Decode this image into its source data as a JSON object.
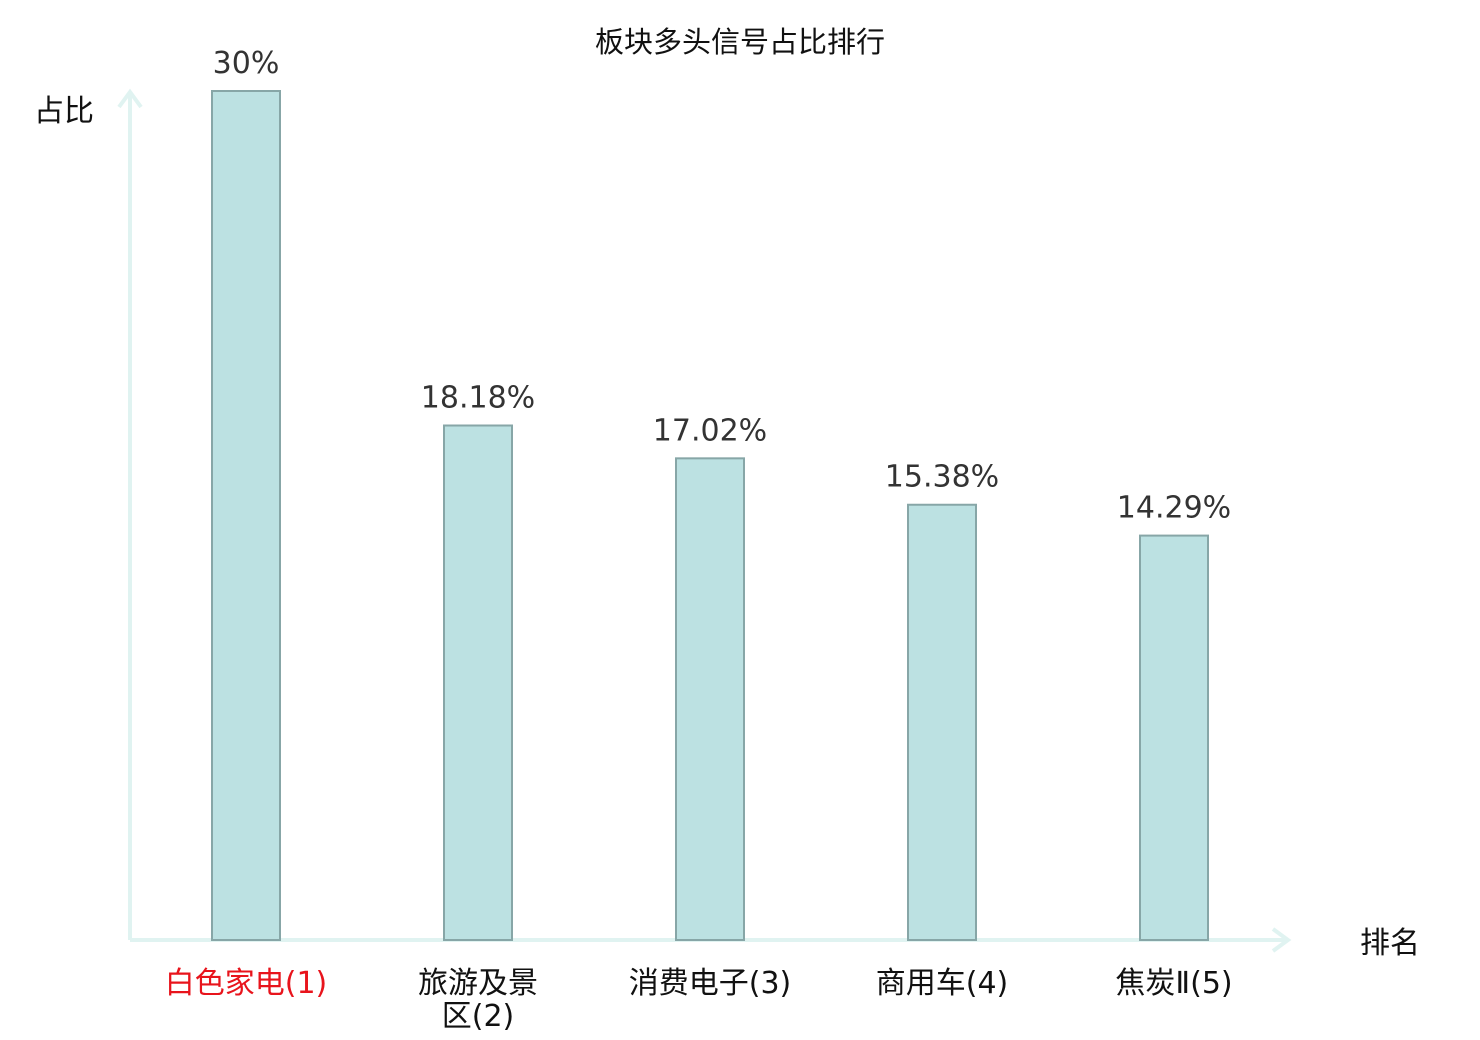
{
  "chart_data": {
    "type": "bar",
    "title": "板块多头信号占比排行",
    "ylabel": "占比",
    "xlabel": "排名",
    "categories": [
      [
        "白色家电(1)"
      ],
      [
        "旅游及景",
        "区(2)"
      ],
      [
        "消费电子(3)"
      ],
      [
        "商用车(4)"
      ],
      [
        "焦炭Ⅱ(5)"
      ]
    ],
    "values": [
      30,
      18.18,
      17.02,
      15.38,
      14.29
    ],
    "value_labels": [
      "30%",
      "18.18%",
      "17.02%",
      "15.38%",
      "14.29%"
    ],
    "ylim": [
      0,
      30
    ],
    "grid": false,
    "legend": "none",
    "colors": {
      "bar_fill": "#bce1e2",
      "bar_stroke": "#87a6a7",
      "axis": "#e0f3f1",
      "highlight_label": "#e8141c",
      "label": "#111111",
      "value_label": "#333333"
    },
    "highlight_index": 0
  }
}
